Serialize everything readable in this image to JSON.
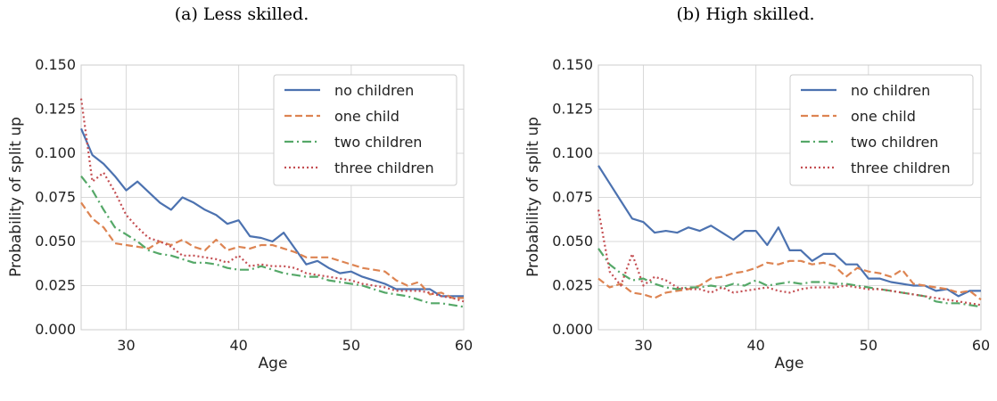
{
  "chart_data": [
    {
      "type": "line",
      "title": "(a) Less skilled.",
      "xlabel": "Age",
      "ylabel": "Probability of split up",
      "xlim": [
        26,
        60
      ],
      "ylim": [
        0,
        0.15
      ],
      "xticks": [
        "30",
        "40",
        "50",
        "60"
      ],
      "yticks": [
        "0.000",
        "0.025",
        "0.050",
        "0.075",
        "0.100",
        "0.125",
        "0.150"
      ],
      "grid": true,
      "legend": "top-right",
      "x": [
        26,
        27,
        28,
        29,
        30,
        31,
        32,
        33,
        34,
        35,
        36,
        37,
        38,
        39,
        40,
        41,
        42,
        43,
        44,
        45,
        46,
        47,
        48,
        49,
        50,
        51,
        52,
        53,
        54,
        55,
        56,
        57,
        58,
        59,
        60
      ],
      "series": [
        {
          "name": "no children",
          "color": "#4c72b0",
          "dash": "solid",
          "values": [
            0.114,
            0.099,
            0.094,
            0.087,
            0.079,
            0.084,
            0.078,
            0.072,
            0.068,
            0.075,
            0.072,
            0.068,
            0.065,
            0.06,
            0.062,
            0.053,
            0.052,
            0.05,
            0.055,
            0.046,
            0.037,
            0.039,
            0.035,
            0.032,
            0.033,
            0.03,
            0.028,
            0.026,
            0.023,
            0.023,
            0.023,
            0.023,
            0.019,
            0.019,
            0.019
          ]
        },
        {
          "name": "one child",
          "color": "#dd8452",
          "dash": "dashed",
          "values": [
            0.072,
            0.063,
            0.058,
            0.049,
            0.048,
            0.047,
            0.046,
            0.05,
            0.048,
            0.051,
            0.047,
            0.045,
            0.051,
            0.045,
            0.047,
            0.046,
            0.048,
            0.048,
            0.046,
            0.044,
            0.041,
            0.041,
            0.041,
            0.039,
            0.037,
            0.035,
            0.034,
            0.033,
            0.028,
            0.025,
            0.027,
            0.02,
            0.021,
            0.018,
            0.018
          ]
        },
        {
          "name": "two children",
          "color": "#55a868",
          "dash": "dashdot",
          "values": [
            0.087,
            0.079,
            0.068,
            0.058,
            0.054,
            0.05,
            0.045,
            0.043,
            0.042,
            0.04,
            0.038,
            0.038,
            0.037,
            0.035,
            0.034,
            0.034,
            0.036,
            0.034,
            0.032,
            0.031,
            0.03,
            0.03,
            0.028,
            0.027,
            0.026,
            0.025,
            0.023,
            0.021,
            0.02,
            0.019,
            0.017,
            0.015,
            0.015,
            0.014,
            0.013
          ]
        },
        {
          "name": "three children",
          "color": "#c44e52",
          "dash": "dotted",
          "values": [
            0.131,
            0.084,
            0.089,
            0.078,
            0.065,
            0.058,
            0.052,
            0.05,
            0.047,
            0.042,
            0.042,
            0.041,
            0.04,
            0.038,
            0.042,
            0.036,
            0.037,
            0.036,
            0.036,
            0.035,
            0.032,
            0.031,
            0.03,
            0.029,
            0.028,
            0.026,
            0.025,
            0.024,
            0.022,
            0.022,
            0.022,
            0.021,
            0.019,
            0.018,
            0.016
          ]
        }
      ]
    },
    {
      "type": "line",
      "title": "(b) High skilled.",
      "xlabel": "Age",
      "ylabel": "Probability of split up",
      "xlim": [
        26,
        60
      ],
      "ylim": [
        0,
        0.15
      ],
      "xticks": [
        "30",
        "40",
        "50",
        "60"
      ],
      "yticks": [
        "0.000",
        "0.025",
        "0.050",
        "0.075",
        "0.100",
        "0.125",
        "0.150"
      ],
      "grid": true,
      "legend": "top-right",
      "x": [
        26,
        27,
        28,
        29,
        30,
        31,
        32,
        33,
        34,
        35,
        36,
        37,
        38,
        39,
        40,
        41,
        42,
        43,
        44,
        45,
        46,
        47,
        48,
        49,
        50,
        51,
        52,
        53,
        54,
        55,
        56,
        57,
        58,
        59,
        60
      ],
      "series": [
        {
          "name": "no children",
          "color": "#4c72b0",
          "dash": "solid",
          "values": [
            0.093,
            0.083,
            0.073,
            0.063,
            0.061,
            0.055,
            0.056,
            0.055,
            0.058,
            0.056,
            0.059,
            0.055,
            0.051,
            0.056,
            0.056,
            0.048,
            0.058,
            0.045,
            0.045,
            0.039,
            0.043,
            0.043,
            0.037,
            0.037,
            0.029,
            0.029,
            0.027,
            0.026,
            0.025,
            0.025,
            0.022,
            0.023,
            0.019,
            0.022,
            0.022
          ]
        },
        {
          "name": "one child",
          "color": "#dd8452",
          "dash": "dashed",
          "values": [
            0.029,
            0.024,
            0.026,
            0.021,
            0.02,
            0.018,
            0.021,
            0.022,
            0.023,
            0.025,
            0.029,
            0.03,
            0.032,
            0.033,
            0.035,
            0.038,
            0.037,
            0.039,
            0.039,
            0.037,
            0.038,
            0.036,
            0.03,
            0.035,
            0.033,
            0.032,
            0.03,
            0.034,
            0.026,
            0.025,
            0.024,
            0.023,
            0.021,
            0.022,
            0.017
          ]
        },
        {
          "name": "two children",
          "color": "#55a868",
          "dash": "dashdot",
          "values": [
            0.046,
            0.037,
            0.032,
            0.028,
            0.029,
            0.026,
            0.024,
            0.023,
            0.024,
            0.024,
            0.025,
            0.024,
            0.026,
            0.025,
            0.028,
            0.025,
            0.026,
            0.027,
            0.026,
            0.027,
            0.027,
            0.026,
            0.026,
            0.025,
            0.024,
            0.023,
            0.022,
            0.021,
            0.02,
            0.019,
            0.016,
            0.015,
            0.015,
            0.014,
            0.013
          ]
        },
        {
          "name": "three children",
          "color": "#c44e52",
          "dash": "dotted",
          "values": [
            0.068,
            0.033,
            0.025,
            0.043,
            0.025,
            0.03,
            0.028,
            0.024,
            0.023,
            0.023,
            0.021,
            0.024,
            0.021,
            0.022,
            0.023,
            0.024,
            0.022,
            0.021,
            0.023,
            0.024,
            0.024,
            0.024,
            0.025,
            0.024,
            0.023,
            0.023,
            0.022,
            0.021,
            0.02,
            0.019,
            0.018,
            0.017,
            0.016,
            0.015,
            0.014
          ]
        }
      ]
    }
  ]
}
